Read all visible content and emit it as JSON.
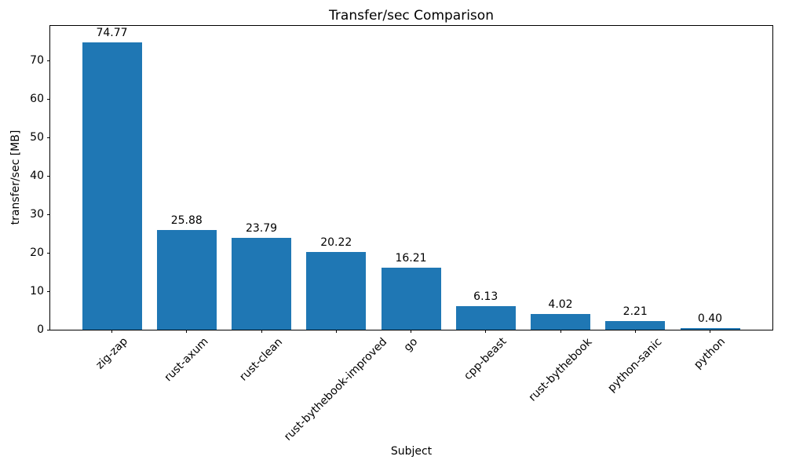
{
  "chart_data": {
    "type": "bar",
    "title": "Transfer/sec Comparison",
    "xlabel": "Subject",
    "ylabel": "transfer/sec [MB]",
    "categories": [
      "zig-zap",
      "rust-axum",
      "rust-clean",
      "rust-bythebook-improved",
      "go",
      "cpp-beast",
      "rust-bythebook",
      "python-sanic",
      "python"
    ],
    "values": [
      74.77,
      25.88,
      23.79,
      20.22,
      16.21,
      6.13,
      4.02,
      2.21,
      0.4
    ],
    "bar_labels": [
      "74.77",
      "25.88",
      "23.79",
      "20.22",
      "16.21",
      "6.13",
      "4.02",
      "2.21",
      "0.40"
    ],
    "bar_color": "#1f77b4",
    "yticks": [
      0,
      10,
      20,
      30,
      40,
      50,
      60,
      70
    ],
    "ylim": [
      0,
      79
    ],
    "grid": false,
    "legend_position": "none",
    "background_color": "#ffffff",
    "text_color": "#000000"
  }
}
